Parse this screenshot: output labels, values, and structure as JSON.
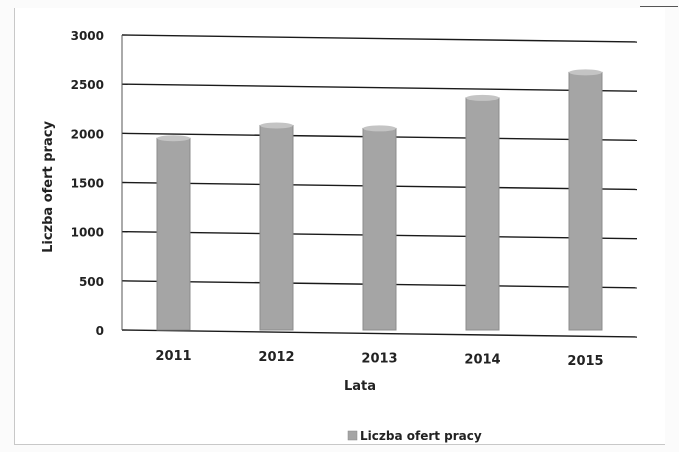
{
  "chart_data": {
    "type": "bar",
    "categories": [
      "2011",
      "2012",
      "2013",
      "2014",
      "2015"
    ],
    "series": [
      {
        "name": "Liczba ofert pracy",
        "values": [
          1950,
          2080,
          2050,
          2360,
          2620
        ]
      }
    ],
    "xlabel": "Lata",
    "ylabel": "Liczba ofert pracy",
    "ylim": [
      0,
      3000
    ],
    "yticks": [
      "0",
      "500",
      "1000",
      "1500",
      "2000",
      "2500",
      "3000"
    ],
    "grid": true,
    "legend_position": "bottom"
  },
  "colors": {
    "bar": "#a5a5a5",
    "bar_dark": "#8c8c8c",
    "grid": "#1a1a1a",
    "text": "#222222"
  }
}
